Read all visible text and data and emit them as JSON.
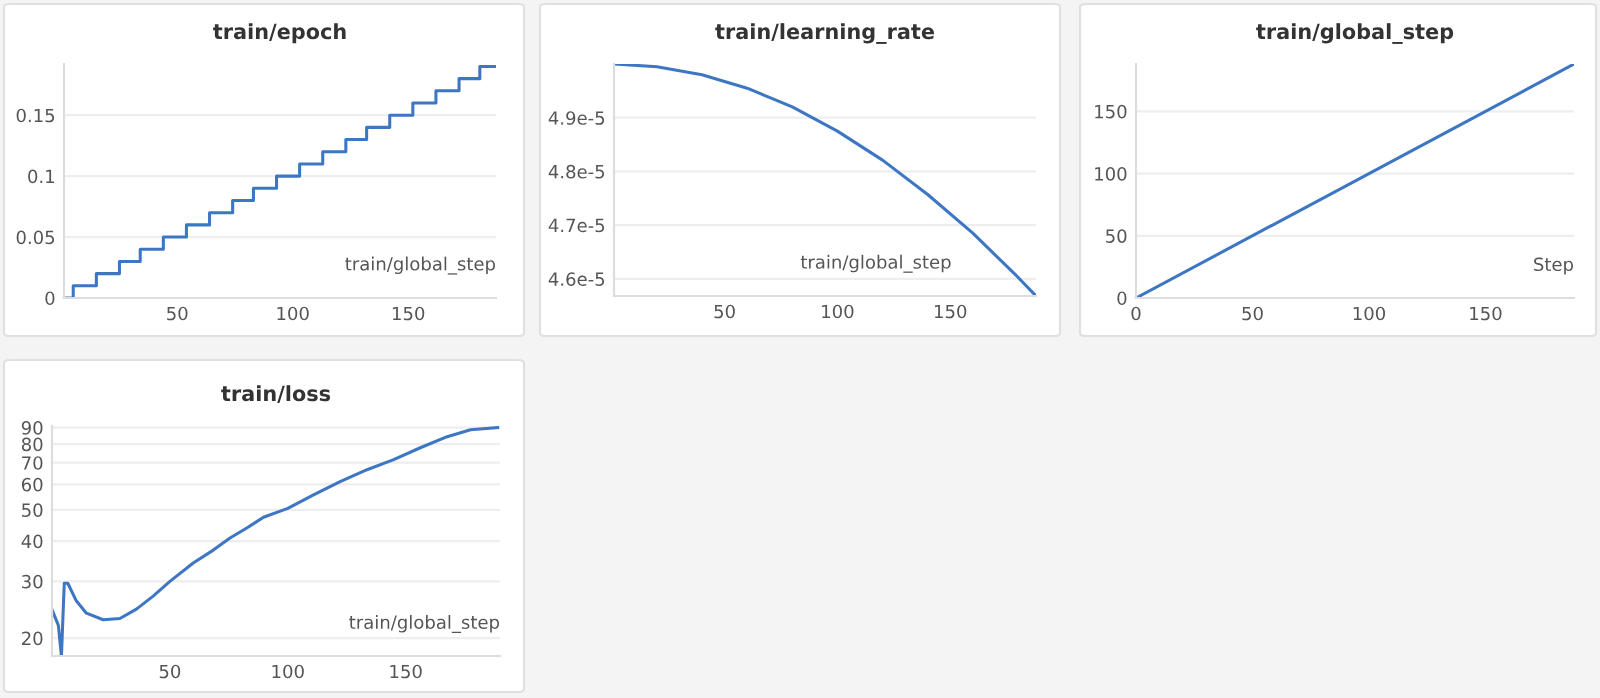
{
  "chart_data": [
    {
      "type": "step",
      "title": "train/epoch",
      "xlabel": "train/global_step",
      "x": [
        1,
        5,
        15,
        25,
        34,
        44,
        54,
        64,
        74,
        83,
        93,
        103,
        113,
        123,
        132,
        142,
        152,
        162,
        172,
        181,
        188
      ],
      "series": [
        {
          "color": "#3d76c2",
          "values": [
            0,
            0.01,
            0.02,
            0.03,
            0.04,
            0.05,
            0.06,
            0.07,
            0.08,
            0.09,
            0.1,
            0.11,
            0.12,
            0.13,
            0.14,
            0.15,
            0.16,
            0.17,
            0.18,
            0.19,
            0.19
          ]
        }
      ],
      "xlim": [
        1,
        188
      ],
      "xticks": [
        50,
        100,
        150
      ],
      "ylim": [
        0,
        0.192
      ],
      "yticks": [
        0,
        0.05,
        0.1,
        0.15
      ],
      "grid": "y"
    },
    {
      "type": "line",
      "title": "train/learning_rate",
      "xlabel": "train/global_step",
      "x": [
        1,
        20,
        40,
        60,
        80,
        100,
        120,
        140,
        160,
        180,
        188
      ],
      "series": [
        {
          "color": "#3d76c2",
          "values": [
            5e-05,
            4.995e-05,
            4.98e-05,
            4.955e-05,
            4.92e-05,
            4.875e-05,
            4.821e-05,
            4.757e-05,
            4.685e-05,
            4.603e-05,
            4.568e-05
          ]
        }
      ],
      "xlim": [
        1,
        188
      ],
      "xticks": [
        50,
        100,
        150
      ],
      "ylim": [
        4.568e-05,
        5e-05
      ],
      "yticks": [
        {
          "value": 4.6e-05,
          "label": "4.6e-5"
        },
        {
          "value": 4.7e-05,
          "label": "4.7e-5"
        },
        {
          "value": 4.8e-05,
          "label": "4.8e-5"
        },
        {
          "value": 4.9e-05,
          "label": "4.9e-5"
        }
      ],
      "grid": "y"
    },
    {
      "type": "line",
      "title": "train/global_step",
      "xlabel": "Step",
      "x": [
        1,
        188
      ],
      "series": [
        {
          "color": "#3d76c2",
          "values": [
            1,
            188
          ]
        }
      ],
      "xlim": [
        0,
        188
      ],
      "xticks": [
        0,
        50,
        100,
        150
      ],
      "ylim": [
        0,
        188
      ],
      "yticks": [
        0,
        50,
        100,
        150
      ],
      "grid": "y"
    },
    {
      "type": "line",
      "title": "train/loss",
      "xlabel": "train/global_step",
      "log": "y",
      "x": [
        0,
        2.7,
        4,
        5.2,
        6.7,
        10.3,
        14.6,
        21.7,
        28.8,
        35.8,
        42.9,
        50,
        59.9,
        68.4,
        75.5,
        82.6,
        89.7,
        100,
        110.9,
        122.2,
        133.6,
        144.9,
        156.2,
        167.6,
        177.5,
        189
      ],
      "series": [
        {
          "color": "#3d76c2",
          "values": [
            24.5,
            21.9,
            17.6,
            29.6,
            29.6,
            26.1,
            23.9,
            22.8,
            23,
            24.6,
            27,
            30,
            34.2,
            37.5,
            40.9,
            43.9,
            47.4,
            50.5,
            55.6,
            61.2,
            66.6,
            71.6,
            77.9,
            84.3,
            88.6,
            90
          ]
        }
      ],
      "xlim": [
        0,
        190
      ],
      "xticks": [
        50,
        100,
        150
      ],
      "ylim": [
        17.6,
        91
      ],
      "yticks": [
        20,
        30,
        40,
        50,
        60,
        70,
        80,
        90
      ],
      "grid": "y"
    }
  ]
}
